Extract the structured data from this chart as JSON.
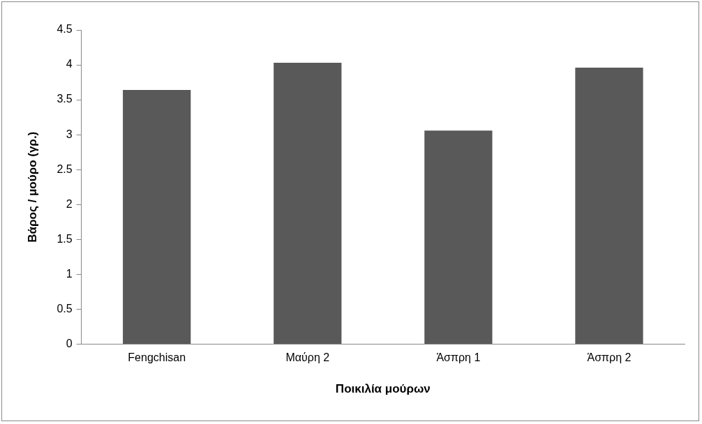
{
  "chart_data": {
    "type": "bar",
    "xlabel": "Ποικιλία μούρων",
    "ylabel": "Βάρος / μούρο (γρ.)",
    "categories": [
      "Fengchisan",
      "Μαύρη 2",
      "Άσπρη 1",
      "Άσπρη 2"
    ],
    "values": [
      3.64,
      4.03,
      3.06,
      3.96
    ],
    "color": "#595959",
    "ylim": [
      0,
      4.5
    ],
    "yticks": [
      0,
      0.5,
      1,
      1.5,
      2,
      2.5,
      3,
      3.5,
      4,
      4.5
    ],
    "grid": false,
    "legend": false
  }
}
